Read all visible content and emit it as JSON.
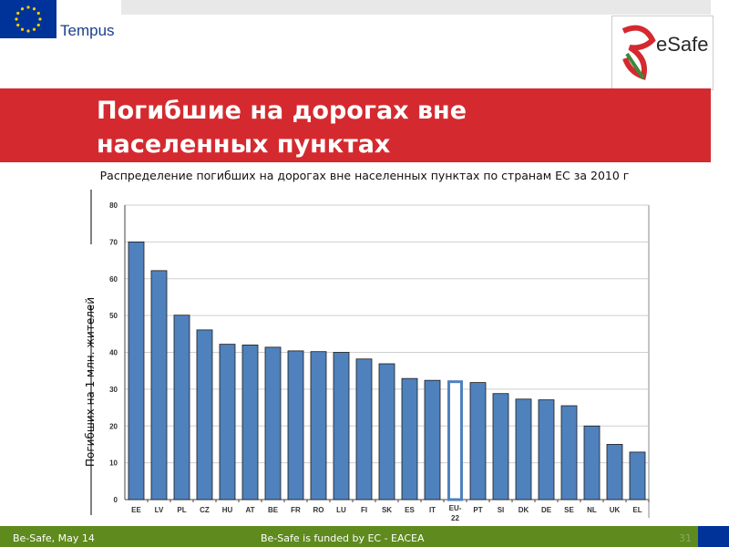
{
  "header": {
    "logo_text": "Tempus",
    "partner_logo_text": "eSafe",
    "title_line1": "Погибшие на дорогах вне",
    "title_line2": "населенных пунктах"
  },
  "chart_data": {
    "type": "bar",
    "title": "Распределение погибших на дорогах вне населенных пунктах по странам ЕС за 2010 г",
    "ylabel": "Погибших на 1 млн. жителей",
    "xlabel": "",
    "ylim": [
      0,
      80
    ],
    "yticks": [
      0,
      10,
      20,
      30,
      40,
      50,
      60,
      70,
      80
    ],
    "grid": true,
    "categories": [
      "EE",
      "LV",
      "PL",
      "CZ",
      "HU",
      "AT",
      "BE",
      "FR",
      "RO",
      "LU",
      "FI",
      "SK",
      "ES",
      "IT",
      "EU-22",
      "PT",
      "SI",
      "DK",
      "DE",
      "SE",
      "NL",
      "UK",
      "EL"
    ],
    "values": [
      70,
      62.2,
      50.1,
      46.1,
      42.2,
      42,
      41.4,
      40.4,
      40.2,
      40,
      38.2,
      36.9,
      32.9,
      32.4,
      32.4,
      31.8,
      28.8,
      27.3,
      27.1,
      25.5,
      20,
      15,
      12.9
    ],
    "highlight": "EU-22",
    "bar_color": "#4f81bd"
  },
  "footer": {
    "left": "Be-Safe, May 14",
    "center": "Be-Safe is funded by EC - EACEA",
    "page": "31"
  }
}
